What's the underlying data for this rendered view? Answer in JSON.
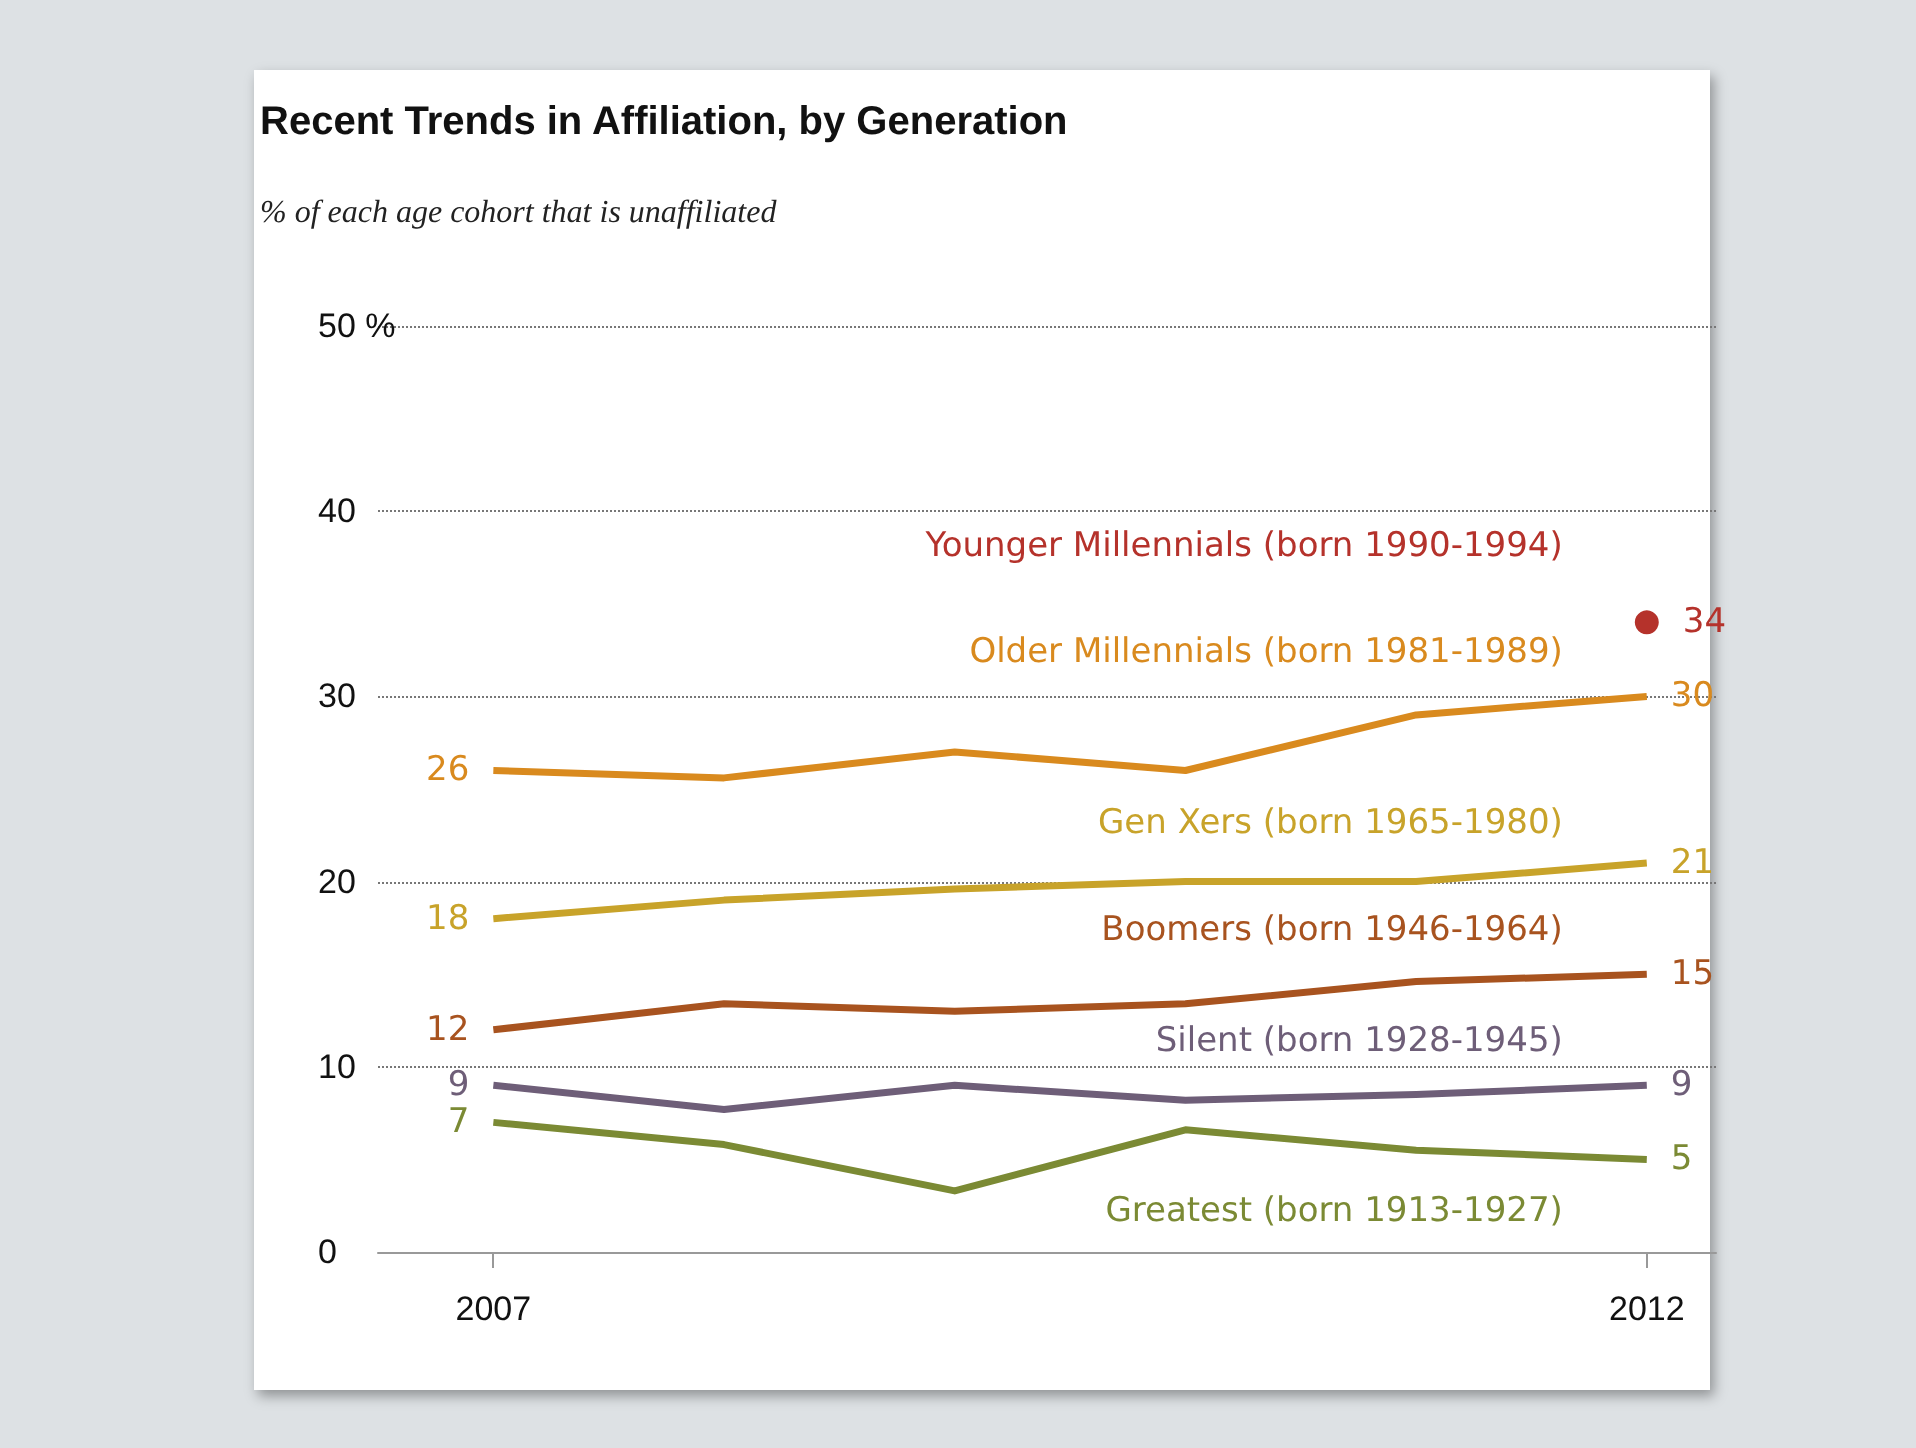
{
  "chart_data": {
    "type": "line",
    "title": "Recent Trends in Affiliation, by Generation",
    "subtitle": "% of each age cohort that is unaffiliated",
    "x": [
      2007,
      2008,
      2009,
      2010,
      2011,
      2012
    ],
    "xlim": [
      2006.5,
      2012.3
    ],
    "xticks": [
      2007,
      2012
    ],
    "ylim": [
      0,
      50
    ],
    "yticks": [
      0,
      10,
      20,
      30,
      40,
      {
        "value": 50,
        "label": "50 %"
      }
    ],
    "grid": "y",
    "marker": "none",
    "line_style": "solid",
    "legend": false,
    "series": [
      {
        "name": "Younger Millennials (born 1990-1994)",
        "type": "scatter",
        "marker": "circle",
        "color": "#b5322b",
        "x": [
          2012
        ],
        "values": [
          34
        ],
        "value_labels": [
          "34"
        ]
      },
      {
        "name": "Older Millennials (born 1981-1989)",
        "color": "#d98a1e",
        "values": [
          26,
          25.6,
          27,
          26,
          29,
          30
        ],
        "value_labels": [
          "26",
          null,
          null,
          null,
          null,
          "30"
        ]
      },
      {
        "name": "Gen Xers (born 1965-1980)",
        "color": "#c8a32a",
        "values": [
          18,
          19,
          19.6,
          20,
          20,
          21
        ],
        "value_labels": [
          "18",
          null,
          null,
          null,
          null,
          "21"
        ]
      },
      {
        "name": "Boomers (born 1946-1964)",
        "color": "#a8531f",
        "values": [
          12,
          13.4,
          13,
          13.4,
          14.6,
          15
        ],
        "value_labels": [
          "12",
          null,
          null,
          null,
          null,
          "15"
        ]
      },
      {
        "name": "Silent (born 1928-1945)",
        "color": "#6e5e78",
        "values": [
          9,
          7.7,
          9,
          8.2,
          8.5,
          9
        ],
        "value_labels": [
          "9",
          null,
          null,
          null,
          null,
          "9"
        ]
      },
      {
        "name": "Greatest (born 1913-1927)",
        "color": "#7b8a34",
        "values": [
          7,
          5.8,
          3.3,
          6.6,
          5.5,
          5
        ],
        "value_labels": [
          "7",
          null,
          null,
          null,
          null,
          "5"
        ]
      }
    ]
  }
}
